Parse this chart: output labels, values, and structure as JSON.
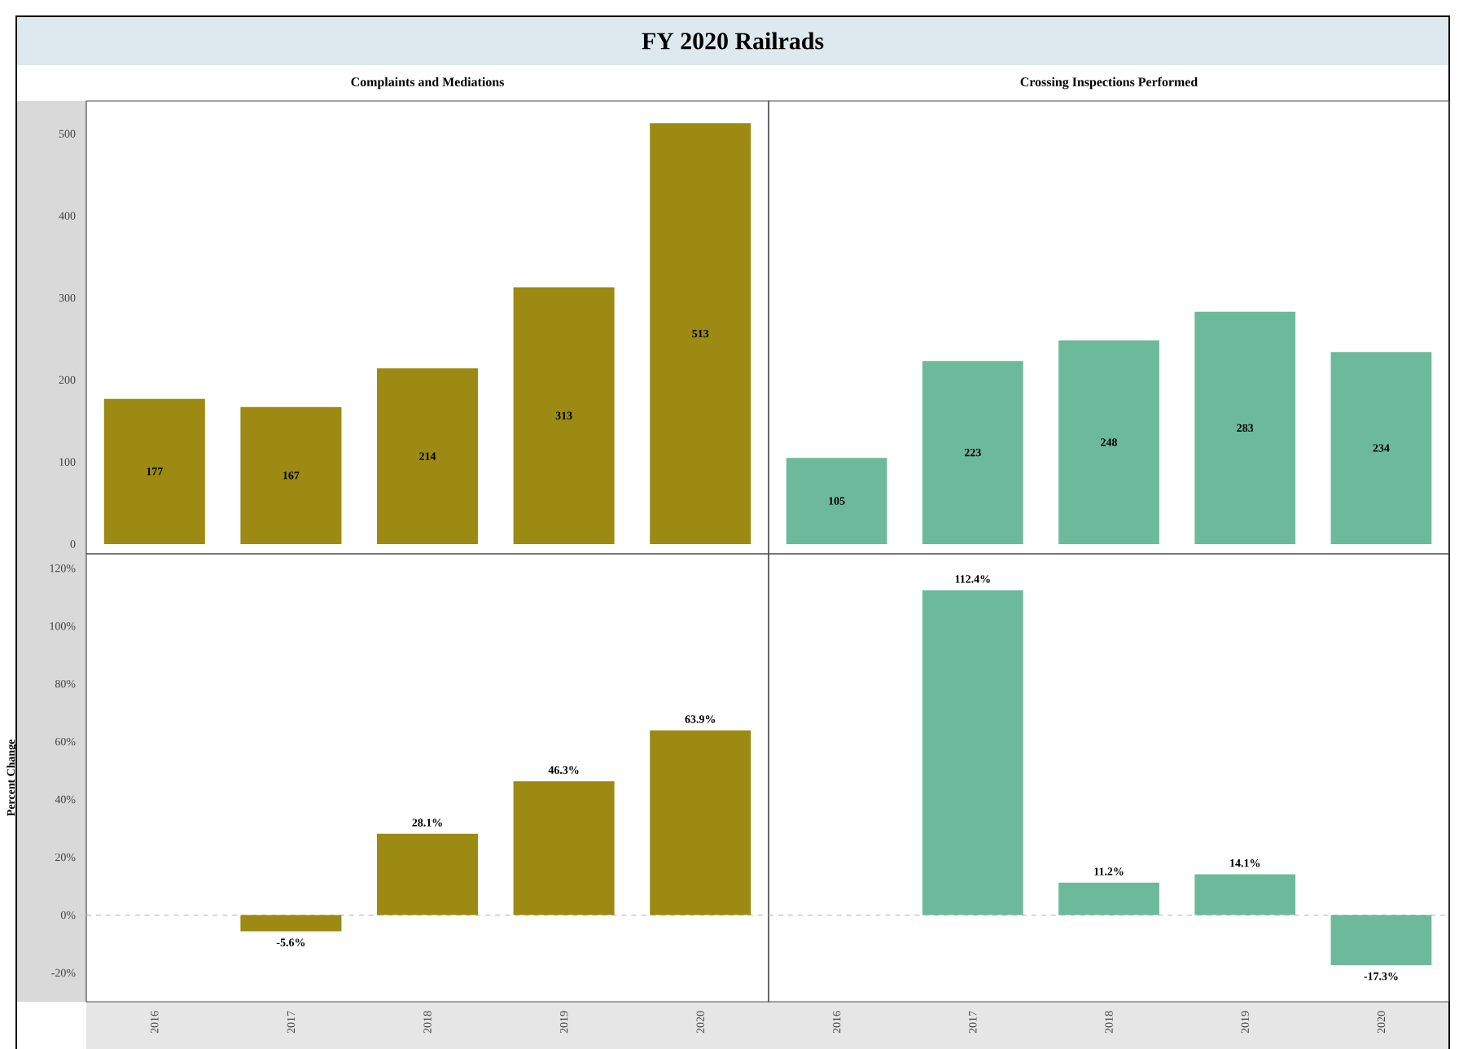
{
  "chart_data": [
    {
      "type": "bar",
      "title": "FY 2020 Railrads",
      "subtitle": "Complaints and Mediations",
      "categories": [
        "2016",
        "2017",
        "2018",
        "2019",
        "2020"
      ],
      "values": [
        177,
        167,
        214,
        313,
        513
      ],
      "color": "#9c8a12",
      "ylim": [
        -12,
        540
      ],
      "yticks": [
        0,
        100,
        200,
        300,
        400,
        500
      ],
      "tick_labels": "y",
      "data_labels": true
    },
    {
      "type": "bar",
      "subtitle": "Crossing Inspections Performed",
      "categories": [
        "2016",
        "2017",
        "2018",
        "2019",
        "2020"
      ],
      "values": [
        105,
        223,
        248,
        283,
        234
      ],
      "color": "#6db99b",
      "ylim": [
        -12,
        540
      ],
      "yticks": [
        0,
        100,
        200,
        300,
        400,
        500
      ],
      "tick_labels": false,
      "data_labels": true
    },
    {
      "type": "bar",
      "ylabel": "Percent Change",
      "categories": [
        "2016",
        "2017",
        "2018",
        "2019",
        "2020"
      ],
      "values": [
        null,
        -5.6,
        28.1,
        46.3,
        63.9
      ],
      "value_labels": [
        null,
        "-5.6%",
        "28.1%",
        "46.3%",
        "63.9%"
      ],
      "color": "#9c8a12",
      "ylim": [
        -30,
        125
      ],
      "yticks": [
        {
          "value": -20,
          "label": "-20%"
        },
        {
          "value": 0,
          "label": "0%"
        },
        {
          "value": 20,
          "label": "20%"
        },
        {
          "value": 40,
          "label": "40%"
        },
        {
          "value": 60,
          "label": "60%"
        },
        {
          "value": 80,
          "label": "80%"
        },
        {
          "value": 100,
          "label": "100%"
        },
        {
          "value": 120,
          "label": "120%"
        }
      ],
      "ref_lines": [
        {
          "axis": "y",
          "value": 0,
          "color": "#bfbfbf",
          "line_style": "dashed"
        }
      ]
    },
    {
      "type": "bar",
      "categories": [
        "2016",
        "2017",
        "2018",
        "2019",
        "2020"
      ],
      "values": [
        null,
        112.4,
        11.2,
        14.1,
        -17.3
      ],
      "value_labels": [
        null,
        "112.4%",
        "11.2%",
        "14.1%",
        "-17.3%"
      ],
      "color": "#6db99b",
      "ylim": [
        -30,
        125
      ],
      "yticks": [
        -20,
        0,
        20,
        40,
        60,
        80,
        100,
        120
      ],
      "tick_labels": "x",
      "ref_lines": [
        {
          "axis": "y",
          "value": 0,
          "color": "#bfbfbf",
          "line_style": "dashed"
        }
      ]
    }
  ]
}
